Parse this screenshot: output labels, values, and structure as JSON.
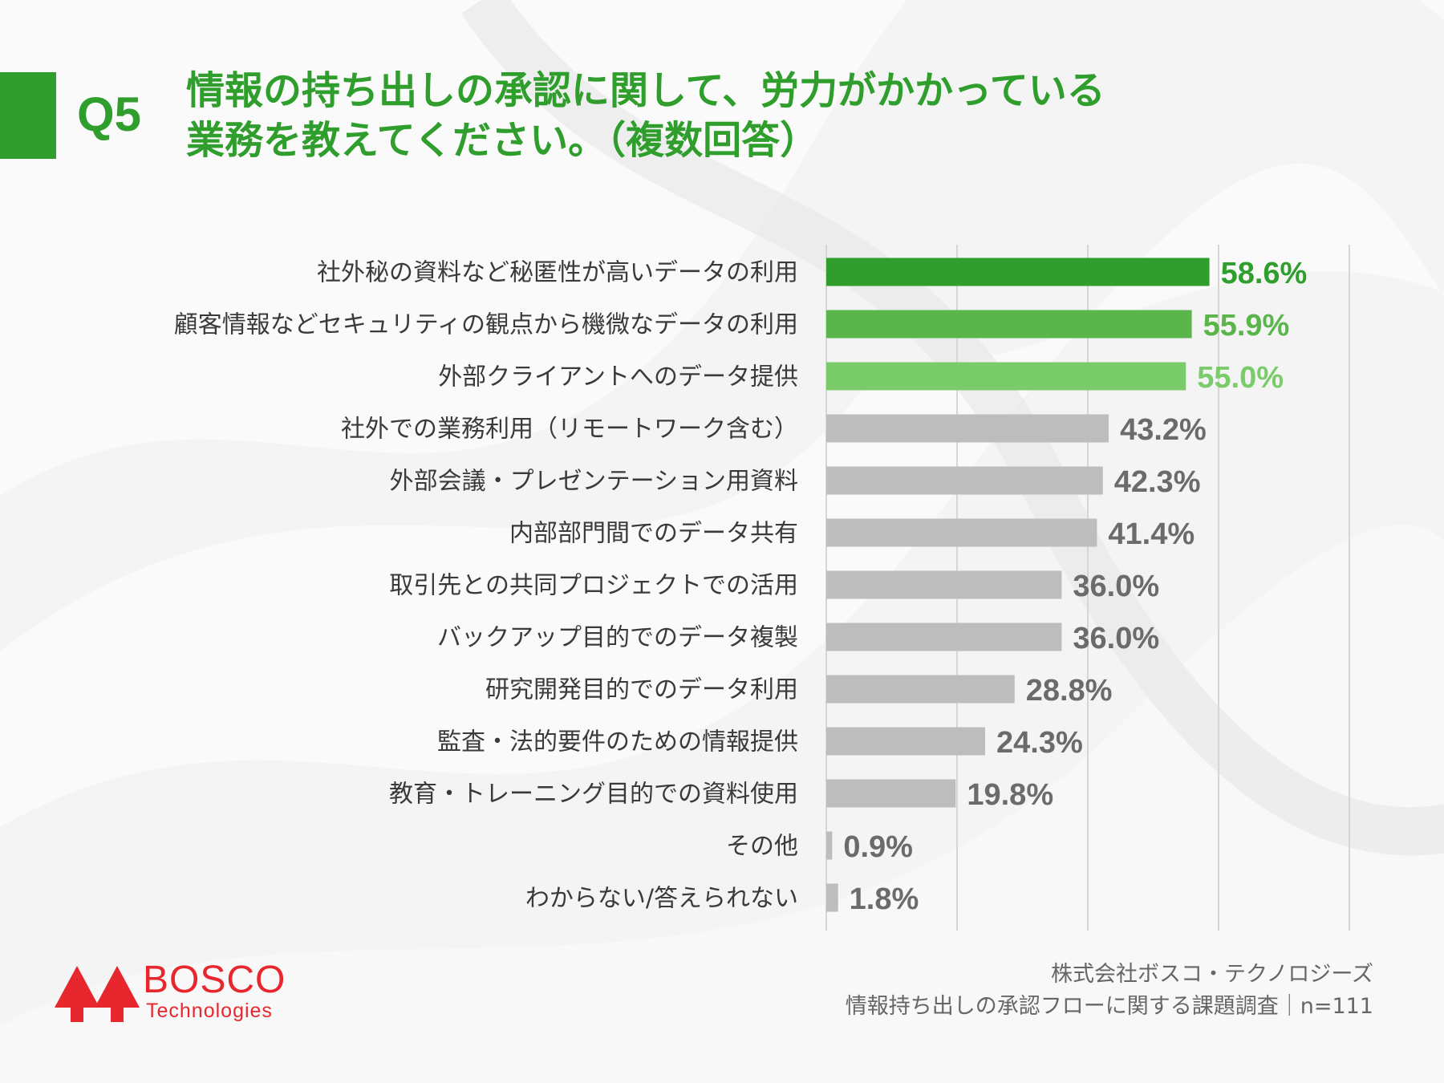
{
  "question": {
    "number": "Q5",
    "title_line1": "情報の持ち出しの承認に関して、労力がかかっている",
    "title_line2": "業務を教えてください。（複数回答）"
  },
  "colors": {
    "title_green": "#2f9e2c",
    "highlight": [
      "#2f9e2c",
      "#5ab54a",
      "#7acc6b"
    ],
    "default_bar": "#bdbdbd",
    "default_label": "#6b6b6b",
    "brand_red": "#e8262d"
  },
  "chart_data": {
    "type": "bar",
    "orientation": "horizontal",
    "unit": "%",
    "xlim": [
      0,
      100
    ],
    "gridlines": [
      0,
      20,
      40,
      60,
      80
    ],
    "highlight_count": 3,
    "categories": [
      "社外秘の資料など秘匿性が高いデータの利用",
      "顧客情報などセキュリティの観点から機微なデータの利用",
      "外部クライアントへのデータ提供",
      "社外での業務利用（リモートワーク含む）",
      "外部会議・プレゼンテーション用資料",
      "内部部門間でのデータ共有",
      "取引先との共同プロジェクトでの活用",
      "バックアップ目的でのデータ複製",
      "研究開発目的でのデータ利用",
      "監査・法的要件のための情報提供",
      "教育・トレーニング目的での資料使用",
      "その他",
      "わからない/答えられない"
    ],
    "values": [
      58.6,
      55.9,
      55.0,
      43.2,
      42.3,
      41.4,
      36.0,
      36.0,
      28.8,
      24.3,
      19.8,
      0.9,
      1.8
    ],
    "value_labels": [
      "58.6%",
      "55.9%",
      "55.0%",
      "43.2%",
      "42.3%",
      "41.4%",
      "36.0%",
      "36.0%",
      "28.8%",
      "24.3%",
      "19.8%",
      "0.9%",
      "1.8%"
    ]
  },
  "footer": {
    "company": "株式会社ボスコ・テクノロジーズ",
    "survey": "情報持ち出しの承認フローに関する課題調査｜n=111"
  },
  "logo": {
    "name": "BOSCO",
    "sub": "Technologies"
  }
}
